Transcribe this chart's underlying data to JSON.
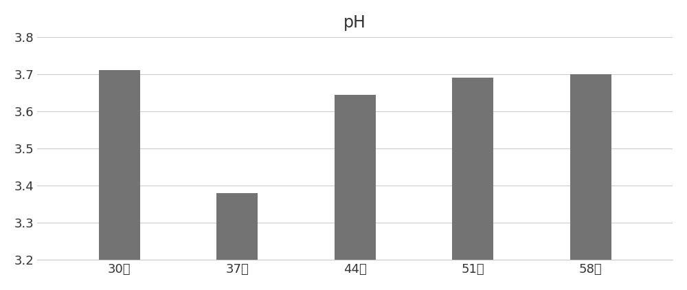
{
  "title": "pH",
  "categories": [
    "30天",
    "37天",
    "44天",
    "51天",
    "58天"
  ],
  "values": [
    3.71,
    3.38,
    3.645,
    3.69,
    3.7
  ],
  "bar_color": "#737373",
  "ylim": [
    3.2,
    3.8
  ],
  "yticks": [
    3.2,
    3.3,
    3.4,
    3.5,
    3.6,
    3.7,
    3.8
  ],
  "title_fontsize": 17,
  "tick_fontsize": 13,
  "background_color": "#ffffff",
  "bar_width": 0.35,
  "grid_color": "#cccccc",
  "grid_linewidth": 0.8,
  "title_color": "#333333",
  "tick_color": "#333333"
}
